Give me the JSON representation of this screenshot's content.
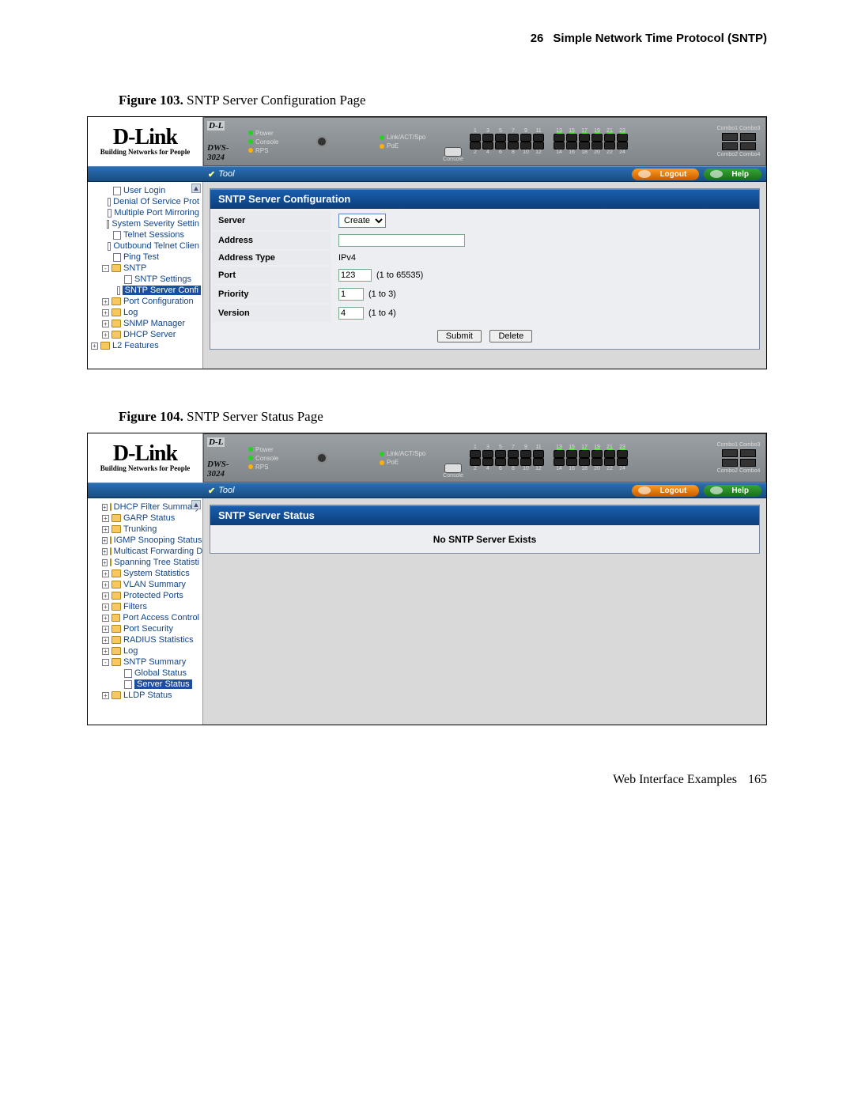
{
  "page_header": {
    "chapter_num": "26",
    "chapter_title": "Simple Network Time Protocol (SNTP)"
  },
  "page_footer": {
    "label": "Web Interface Examples",
    "number": "165"
  },
  "figures": {
    "fig103": {
      "label": "Figure 103.",
      "title": " SNTP Server Configuration Page"
    },
    "fig104": {
      "label": "Figure 104.",
      "title": " SNTP Server Status Page"
    }
  },
  "logo": {
    "brand": "D-Link",
    "tagline": "Building Networks for People"
  },
  "switch": {
    "brand": "D-L",
    "model": "DWS-3024",
    "leds": [
      {
        "label": "Power",
        "color": "#24d224"
      },
      {
        "label": "Console",
        "color": "#24d224"
      },
      {
        "label": "RPS",
        "color": "#ffb000"
      }
    ],
    "indicators": [
      {
        "label": "Link/ACT/Spo",
        "color": "#24d224"
      },
      {
        "label": "PoE",
        "color": "#ffb000"
      }
    ],
    "console": "Console",
    "ports_top_a": [
      "1",
      "3",
      "5",
      "7",
      "9",
      "11"
    ],
    "ports_bot_a": [
      "2",
      "4",
      "6",
      "8",
      "10",
      "12"
    ],
    "ports_top_b": [
      "13",
      "15",
      "17",
      "19",
      "21",
      "23"
    ],
    "ports_bot_b": [
      "14",
      "16",
      "18",
      "20",
      "22",
      "24"
    ],
    "combo_top": "Combo1 Combo3",
    "combo_bot": "Combo2 Combo4"
  },
  "navbar": {
    "tool": "Tool",
    "logout": "Logout",
    "help": "Help"
  },
  "fig103_tree": [
    {
      "indent": 1,
      "icon": "page",
      "label": "User Login",
      "sel": false
    },
    {
      "indent": 1,
      "icon": "page",
      "label": "Denial Of Service Prot",
      "sel": false
    },
    {
      "indent": 1,
      "icon": "page",
      "label": "Multiple Port Mirroring",
      "sel": false
    },
    {
      "indent": 1,
      "icon": "page",
      "label": "System Severity Settin",
      "sel": false
    },
    {
      "indent": 1,
      "icon": "page",
      "label": "Telnet Sessions",
      "sel": false
    },
    {
      "indent": 1,
      "icon": "page",
      "label": "Outbound Telnet Clien",
      "sel": false
    },
    {
      "indent": 1,
      "icon": "page",
      "label": "Ping Test",
      "sel": false
    },
    {
      "indent": 1,
      "icon": "folder-open",
      "label": "SNTP",
      "sel": false,
      "box": "-"
    },
    {
      "indent": 2,
      "icon": "page",
      "label": "SNTP Settings",
      "sel": false
    },
    {
      "indent": 2,
      "icon": "page",
      "label": "SNTP Server Confi",
      "sel": true
    },
    {
      "indent": 1,
      "icon": "folder",
      "label": "Port Configuration",
      "sel": false,
      "box": "+"
    },
    {
      "indent": 1,
      "icon": "folder",
      "label": "Log",
      "sel": false,
      "box": "+"
    },
    {
      "indent": 1,
      "icon": "folder",
      "label": "SNMP Manager",
      "sel": false,
      "box": "+"
    },
    {
      "indent": 1,
      "icon": "folder",
      "label": "DHCP Server",
      "sel": false,
      "box": "+"
    },
    {
      "indent": 0,
      "icon": "folder",
      "label": "L2 Features",
      "sel": false,
      "box": "+"
    }
  ],
  "sntp_config": {
    "panel_title": "SNTP Server Configuration",
    "rows": {
      "server": {
        "label": "Server",
        "value": "Create"
      },
      "address": {
        "label": "Address",
        "value": ""
      },
      "address_type": {
        "label": "Address Type",
        "value": "IPv4"
      },
      "port": {
        "label": "Port",
        "value": "123",
        "hint": "(1 to 65535)"
      },
      "priority": {
        "label": "Priority",
        "value": "1",
        "hint": "(1 to 3)"
      },
      "version": {
        "label": "Version",
        "value": "4",
        "hint": "(1 to 4)"
      }
    },
    "buttons": {
      "submit": "Submit",
      "delete": "Delete"
    }
  },
  "fig104_tree": [
    {
      "indent": 1,
      "icon": "folder",
      "label": "DHCP Filter Summary",
      "box": "+"
    },
    {
      "indent": 1,
      "icon": "folder",
      "label": "GARP Status",
      "box": "+"
    },
    {
      "indent": 1,
      "icon": "folder",
      "label": "Trunking",
      "box": "+"
    },
    {
      "indent": 1,
      "icon": "folder",
      "label": "IGMP Snooping Status",
      "box": "+"
    },
    {
      "indent": 1,
      "icon": "folder",
      "label": "Multicast Forwarding D",
      "box": "+"
    },
    {
      "indent": 1,
      "icon": "folder",
      "label": "Spanning Tree Statisti",
      "box": "+"
    },
    {
      "indent": 1,
      "icon": "folder",
      "label": "System Statistics",
      "box": "+"
    },
    {
      "indent": 1,
      "icon": "folder",
      "label": "VLAN Summary",
      "box": "+"
    },
    {
      "indent": 1,
      "icon": "folder",
      "label": "Protected Ports",
      "box": "+"
    },
    {
      "indent": 1,
      "icon": "folder",
      "label": "Filters",
      "box": "+"
    },
    {
      "indent": 1,
      "icon": "folder",
      "label": "Port Access Control",
      "box": "+"
    },
    {
      "indent": 1,
      "icon": "folder",
      "label": "Port Security",
      "box": "+"
    },
    {
      "indent": 1,
      "icon": "folder",
      "label": "RADIUS Statistics",
      "box": "+"
    },
    {
      "indent": 1,
      "icon": "folder",
      "label": "Log",
      "box": "+"
    },
    {
      "indent": 1,
      "icon": "folder-open",
      "label": "SNTP Summary",
      "box": "-"
    },
    {
      "indent": 2,
      "icon": "page",
      "label": "Global Status",
      "sel": false
    },
    {
      "indent": 2,
      "icon": "page",
      "label": "Server Status",
      "sel": true
    },
    {
      "indent": 1,
      "icon": "folder",
      "label": "LLDP Status",
      "box": "+"
    }
  ],
  "sntp_status": {
    "panel_title": "SNTP Server Status",
    "message": "No SNTP Server Exists"
  }
}
